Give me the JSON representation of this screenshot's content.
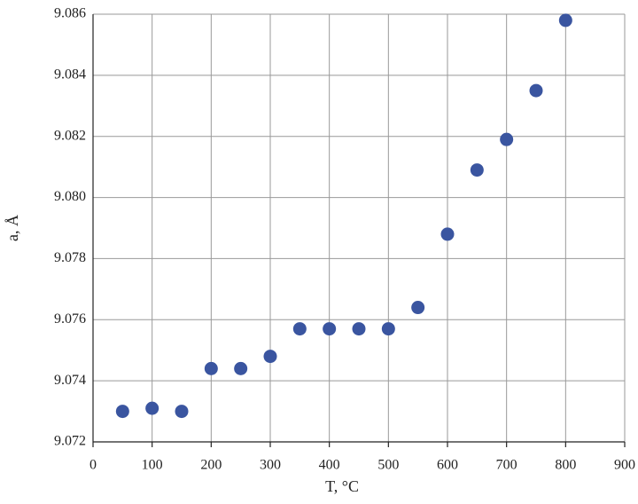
{
  "chart_data": {
    "type": "scatter",
    "x_label": "T, °C",
    "y_label": "a, Å",
    "x": [
      50,
      100,
      150,
      200,
      250,
      300,
      350,
      400,
      450,
      500,
      550,
      600,
      650,
      700,
      750,
      800
    ],
    "series": [
      {
        "color": "#3a55a0",
        "values": [
          9.073,
          9.0731,
          9.073,
          9.0744,
          9.0744,
          9.0748,
          9.0757,
          9.0757,
          9.0757,
          9.0757,
          9.0764,
          9.0788,
          9.0809,
          9.0819,
          9.0835,
          9.0858
        ]
      }
    ],
    "xlim": [
      0,
      900
    ],
    "xticks": [
      0,
      100,
      200,
      300,
      400,
      500,
      600,
      700,
      800,
      900
    ],
    "ylim": [
      9.072,
      9.086
    ],
    "yticks": [
      9.072,
      9.074,
      9.076,
      9.078,
      {
        "value": 9.08,
        "label": "9.080"
      },
      9.082,
      9.084,
      9.086
    ],
    "grid": true
  }
}
